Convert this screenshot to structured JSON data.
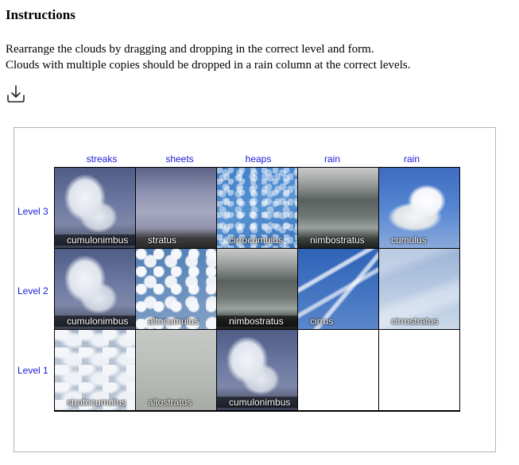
{
  "header": {
    "title": "Instructions",
    "line1": "Rearrange the clouds by dragging and dropping in the correct level and form.",
    "line2": "Clouds with multiple copies should be dropped in a rain column at the correct levels."
  },
  "download_icon": "download-icon",
  "columns": [
    "streaks",
    "sheets",
    "heaps",
    "rain",
    "rain"
  ],
  "levels": [
    "Level 3",
    "Level 2",
    "Level 1"
  ],
  "grid": [
    [
      "cumulonimbus",
      "stratus",
      "cirrocumulus",
      "nimbostratus",
      "cumulus"
    ],
    [
      "cumulonimbus",
      "altocumulus",
      "nimbostratus",
      "cirrus",
      "cirrostratus"
    ],
    [
      "stratocumulus",
      "altostratus",
      "cumulonimbus",
      "",
      ""
    ]
  ],
  "colors": {
    "label_blue": "#1b1bd6",
    "panel_border": "#b4b4b4",
    "grid_line": "#000000"
  }
}
